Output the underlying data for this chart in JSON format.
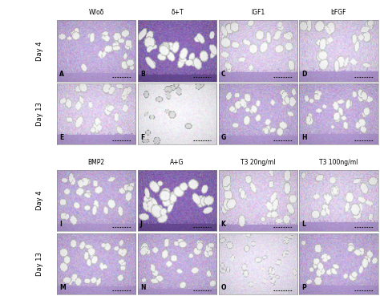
{
  "col_labels_top": [
    "W/oδ",
    "δ+T",
    "IGF1",
    "bFGF"
  ],
  "col_labels_bottom": [
    "BMP2",
    "A+G",
    "T3 20ng/ml",
    "T3 100ng/ml"
  ],
  "row_labels_top": [
    "Day 4",
    "Day 13"
  ],
  "row_labels_bottom": [
    "Day 4",
    "Day 13"
  ],
  "panel_letters_top": [
    [
      "A",
      "B",
      "C",
      "D"
    ],
    [
      "E",
      "F",
      "G",
      "H"
    ]
  ],
  "panel_letters_bottom": [
    [
      "I",
      "J",
      "K",
      "L"
    ],
    [
      "M",
      "N",
      "O",
      "P"
    ]
  ],
  "bg_color": "#ffffff",
  "label_fontsize": 5.5,
  "letter_fontsize": 5.5,
  "row_label_fontsize": 6,
  "scalebar_color": "#111111",
  "styles_top": [
    [
      "med_purple",
      "dark_purple",
      "light_purple",
      "light_purple"
    ],
    [
      "light_purple",
      "near_white",
      "med_purple",
      "med_purple"
    ]
  ],
  "styles_bottom": [
    [
      "med_purple",
      "dark_purple",
      "light_purple",
      "light_purple"
    ],
    [
      "med_purple",
      "med_purple",
      "near_white2",
      "med_purple"
    ]
  ],
  "colors": {
    "med_purple": [
      0.78,
      0.7,
      0.88
    ],
    "dark_purple": [
      0.55,
      0.42,
      0.72
    ],
    "light_purple": [
      0.88,
      0.82,
      0.94
    ],
    "near_white": [
      0.97,
      0.96,
      0.99
    ],
    "near_white2": [
      0.93,
      0.9,
      0.97
    ]
  }
}
